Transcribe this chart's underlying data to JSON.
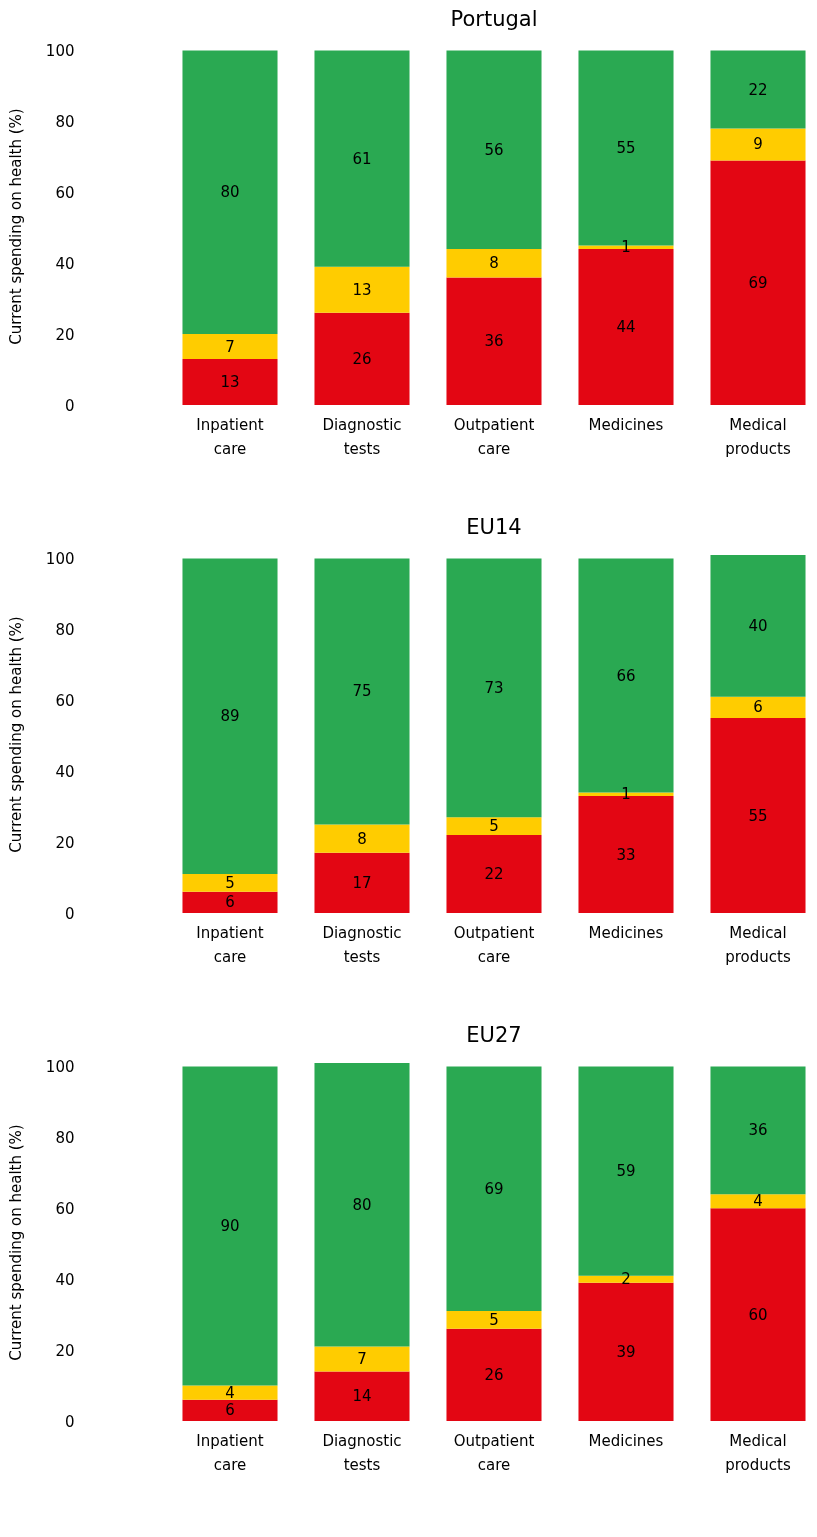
{
  "chart_data": [
    {
      "type": "bar",
      "title": "Portugal",
      "ylabel": "Current spending on health (%)",
      "categories": [
        "Inpatient care",
        "Diagnostic tests",
        "Outpatient care",
        "Medicines",
        "Medical products"
      ],
      "stacked": true,
      "data_labels": true,
      "grid": false,
      "ylim": [
        0,
        101
      ],
      "yticks": [
        0,
        20,
        40,
        60,
        80,
        100
      ],
      "series": [
        {
          "color": "#e30613",
          "values": [
            13,
            26,
            36,
            44,
            69
          ]
        },
        {
          "color": "#ffcc00",
          "values": [
            7,
            13,
            8,
            1,
            9
          ]
        },
        {
          "color": "#2aa952",
          "values": [
            80,
            61,
            56,
            55,
            22
          ]
        }
      ]
    },
    {
      "type": "bar",
      "title": "EU14",
      "ylabel": "Current spending on health (%)",
      "categories": [
        "Inpatient care",
        "Diagnostic tests",
        "Outpatient care",
        "Medicines",
        "Medical products"
      ],
      "stacked": true,
      "data_labels": true,
      "grid": false,
      "ylim": [
        0,
        101
      ],
      "yticks": [
        0,
        20,
        40,
        60,
        80,
        100
      ],
      "series": [
        {
          "color": "#e30613",
          "values": [
            6,
            17,
            22,
            33,
            55
          ]
        },
        {
          "color": "#ffcc00",
          "values": [
            5,
            8,
            5,
            1,
            6
          ]
        },
        {
          "color": "#2aa952",
          "values": [
            89,
            75,
            73,
            66,
            40
          ]
        }
      ]
    },
    {
      "type": "bar",
      "title": "EU27",
      "ylabel": "Current spending on health (%)",
      "categories": [
        "Inpatient care",
        "Diagnostic tests",
        "Outpatient care",
        "Medicines",
        "Medical products"
      ],
      "stacked": true,
      "data_labels": true,
      "grid": false,
      "ylim": [
        0,
        101
      ],
      "yticks": [
        0,
        20,
        40,
        60,
        80,
        100
      ],
      "series": [
        {
          "color": "#e30613",
          "values": [
            6,
            14,
            26,
            39,
            60
          ]
        },
        {
          "color": "#ffcc00",
          "values": [
            4,
            7,
            5,
            2,
            4
          ]
        },
        {
          "color": "#2aa952",
          "values": [
            90,
            80,
            69,
            59,
            36
          ]
        }
      ]
    }
  ]
}
